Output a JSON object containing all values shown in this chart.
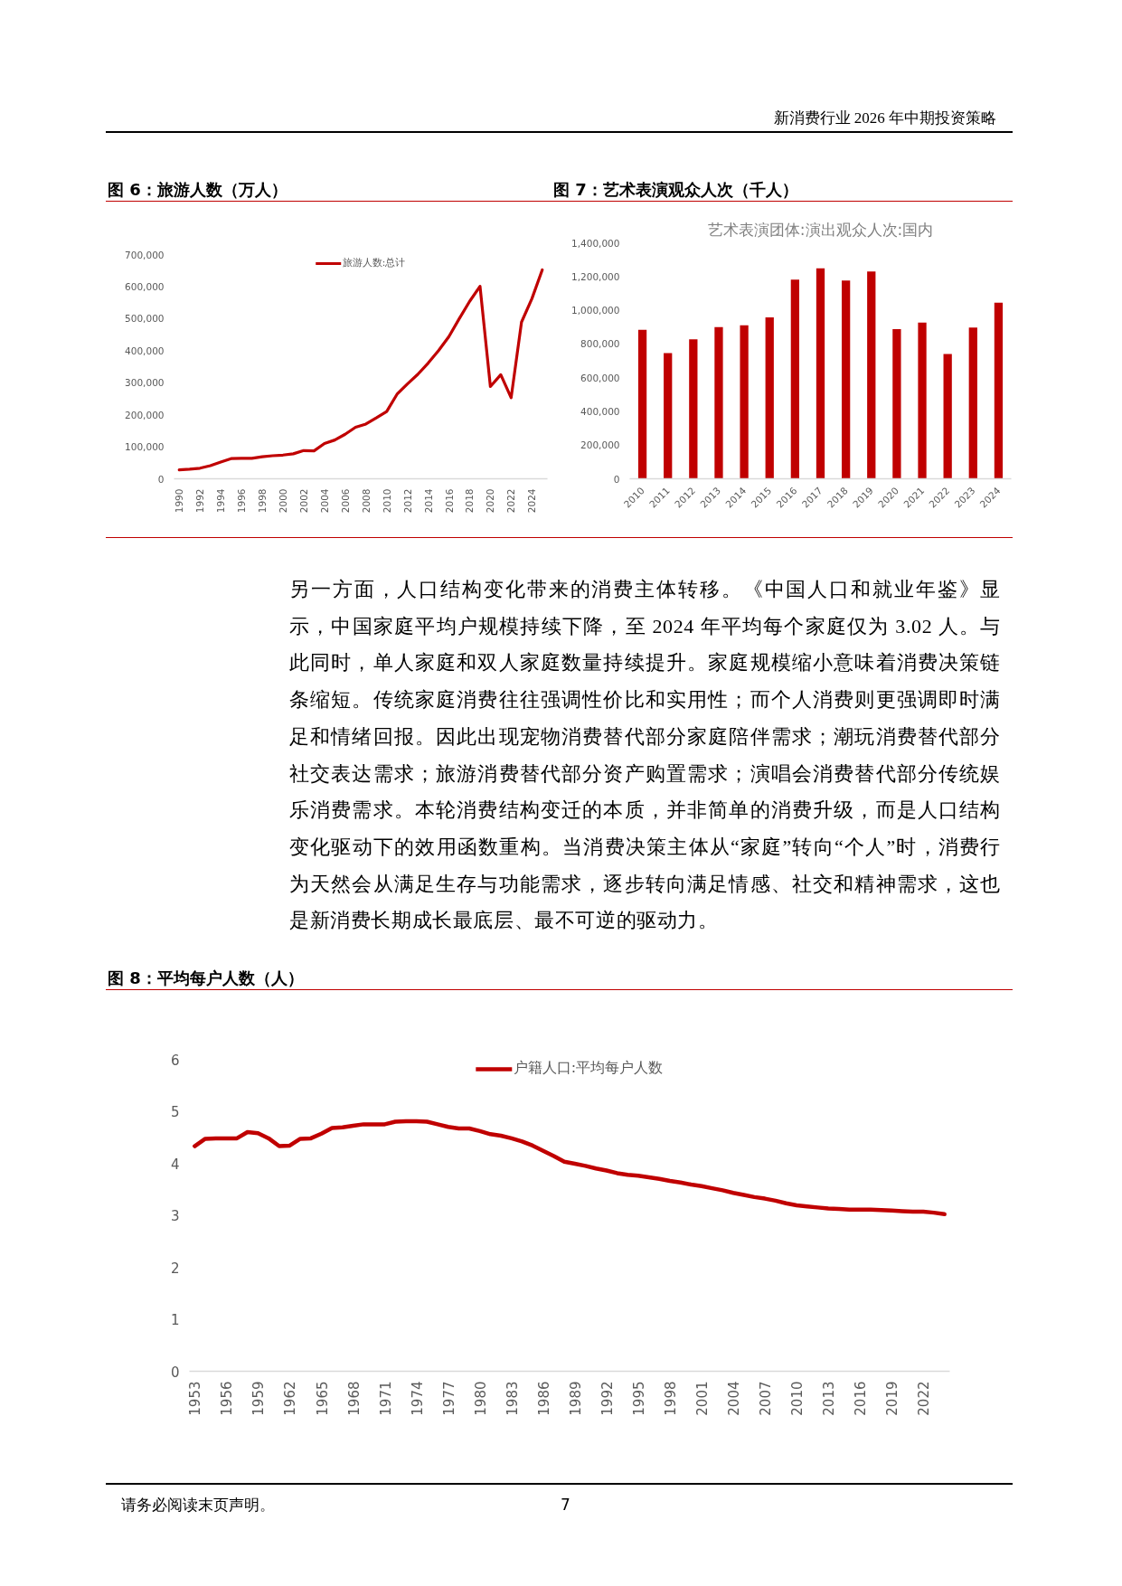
{
  "chart_data": [
    {
      "type": "other",
      "annotations": [
        "新消费行业 2026 年中期投资策略"
      ]
    },
    {
      "type": "line",
      "title": "图 6：旅游人数（万人）",
      "categories": [
        "1990",
        null,
        "1992",
        null,
        "1994",
        null,
        "1996",
        null,
        "1998",
        null,
        "2000",
        null,
        "2002",
        null,
        "2004",
        null,
        "2006",
        null,
        "2008",
        null,
        "2010",
        null,
        "2012",
        null,
        "2014",
        null,
        "2016",
        null,
        "2018",
        null,
        "2020",
        null,
        "2022",
        null,
        "2024",
        null
      ],
      "series": [
        {
          "name": "旅游人数:总计",
          "color": "#c00000",
          "values": [
            28000,
            30000,
            33000,
            41000,
            52000,
            63000,
            64000,
            64000,
            69000,
            72000,
            74000,
            78000,
            88000,
            87000,
            110000,
            121000,
            139000,
            161000,
            171000,
            190000,
            210000,
            264000,
            296000,
            326000,
            361000,
            400000,
            444000,
            500000,
            554000,
            601000,
            288000,
            325000,
            253000,
            489000,
            562000,
            652000
          ]
        }
      ],
      "ylim": [
        0,
        700000
      ],
      "yticks": [
        0,
        {
          "value": 100000,
          "label": "100,000"
        },
        {
          "value": 200000,
          "label": "200,000"
        },
        {
          "value": 300000,
          "label": "300,000"
        },
        {
          "value": 400000,
          "label": "400,000"
        },
        {
          "value": 500000,
          "label": "500,000"
        },
        {
          "value": 600000,
          "label": "600,000"
        },
        {
          "value": 700000,
          "label": "700,000"
        }
      ],
      "legend": "top"
    },
    {
      "type": "bar",
      "title": "图 7：艺术表演观众人次（千人）",
      "subtitle": "艺术表演团体:演出观众人次:国内",
      "categories": [
        "2010",
        "2011",
        "2012",
        "2013",
        "2014",
        "2015",
        "2016",
        "2017",
        "2018",
        "2019",
        "2020",
        "2021",
        "2022",
        "2023",
        "2024"
      ],
      "values": [
        884000,
        746000,
        828000,
        900000,
        910000,
        958000,
        1181000,
        1248000,
        1176000,
        1230000,
        888000,
        927000,
        740000,
        897000,
        1044000
      ],
      "color": "#c00000",
      "ylim": [
        0,
        1400000
      ],
      "yticks": [
        0,
        {
          "value": 200000,
          "label": "200,000"
        },
        {
          "value": 400000,
          "label": "400,000"
        },
        {
          "value": 600000,
          "label": "600,000"
        },
        {
          "value": 800000,
          "label": "800,000"
        },
        {
          "value": 1000000,
          "label": "1,000,000"
        },
        {
          "value": 1200000,
          "label": "1,200,000"
        },
        {
          "value": 1400000,
          "label": "1,400,000"
        }
      ]
    },
    {
      "type": "other",
      "annotations": [
        "另一方面，人口结构变化带来的消费主体转移。《中国人口和就业年鉴》显示，中国家庭平均户规模持续下降，至 2024 年平均每个家庭仅为 3.02 人。与此同时，单人家庭和双人家庭数量持续提升。家庭规模缩小意味着消费决策链条缩短。传统家庭消费往往强调性价比和实用性；而个人消费则更强调即时满足和情绪回报。因此出现宠物消费替代部分家庭陪伴需求；潮玩消费替代部分社交表达需求；旅游消费替代部分资产购置需求；演唱会消费替代部分传统娱乐消费需求。本轮消费结构变迁的本质，并非简单的消费升级，而是人口结构变化驱动下的效用函数重构。当消费决策主体从“家庭”转向“个人”时，消费行为天然会从满足生存与功能需求，逐步转向满足情感、社交和精神需求，这也是新消费长期成长最底层、最不可逆的驱动力。"
      ]
    },
    {
      "type": "line",
      "title": "图 8：平均每户人数（人）",
      "categories": [
        "1953",
        null,
        null,
        "1956",
        null,
        null,
        "1959",
        null,
        null,
        "1962",
        null,
        null,
        "1965",
        null,
        null,
        "1968",
        null,
        null,
        "1971",
        null,
        null,
        "1974",
        null,
        null,
        "1977",
        null,
        null,
        "1980",
        null,
        null,
        "1983",
        null,
        null,
        "1986",
        null,
        null,
        "1989",
        null,
        null,
        "1992",
        null,
        null,
        "1995",
        null,
        null,
        "1998",
        null,
        null,
        "2001",
        null,
        null,
        "2004",
        null,
        null,
        "2007",
        null,
        null,
        "2010",
        null,
        null,
        "2013",
        null,
        null,
        "2016",
        null,
        null,
        "2019",
        null,
        null,
        "2022",
        null,
        null
      ],
      "series": [
        {
          "name": "户籍人口:平均每户人数",
          "color": "#c00000",
          "values": [
            4.33,
            4.47,
            4.48,
            4.48,
            4.48,
            4.6,
            4.58,
            4.48,
            4.33,
            4.34,
            4.47,
            4.48,
            4.57,
            4.68,
            4.69,
            4.72,
            4.75,
            4.75,
            4.75,
            4.8,
            4.81,
            4.81,
            4.8,
            4.75,
            4.7,
            4.67,
            4.67,
            4.62,
            4.56,
            4.53,
            4.48,
            4.42,
            4.34,
            4.24,
            4.14,
            4.03,
            3.99,
            3.95,
            3.9,
            3.86,
            3.81,
            3.78,
            3.76,
            3.73,
            3.7,
            3.66,
            3.63,
            3.59,
            3.56,
            3.52,
            3.48,
            3.43,
            3.39,
            3.35,
            3.32,
            3.28,
            3.23,
            3.19,
            3.17,
            3.15,
            3.13,
            3.12,
            3.11,
            3.11,
            3.11,
            3.1,
            3.09,
            3.08,
            3.07,
            3.07,
            3.05,
            3.02
          ]
        }
      ],
      "ylim": [
        0,
        6
      ],
      "yticks": [
        0,
        1,
        2,
        3,
        4,
        5,
        6
      ],
      "legend": "top"
    },
    {
      "type": "other",
      "annotations": [
        "请务必阅读末页声明。",
        "7"
      ]
    }
  ]
}
